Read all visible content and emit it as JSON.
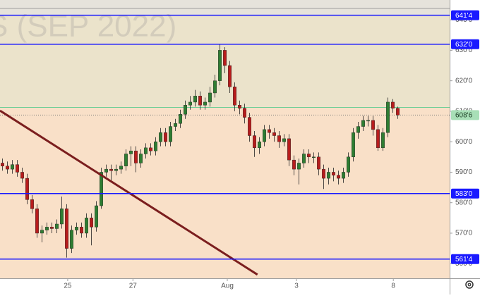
{
  "chart_data": {
    "type": "candlestick",
    "watermark": "S (SEP 2022)",
    "xlim": [
      -0.5,
      90.5
    ],
    "ylim": [
      555.2,
      646.5
    ],
    "xticks": [
      {
        "value": 13.2,
        "label": "25"
      },
      {
        "value": 26.4,
        "label": "27"
      },
      {
        "value": 45.5,
        "label": "Aug"
      },
      {
        "value": 59.5,
        "label": "3"
      },
      {
        "value": 79.1,
        "label": "8"
      }
    ],
    "yticks": [
      {
        "value": 640,
        "label": "640'0"
      },
      {
        "value": 630,
        "label": "630'0"
      },
      {
        "value": 620,
        "label": "620'0"
      },
      {
        "value": 610,
        "label": "610'0"
      },
      {
        "value": 600,
        "label": "600'0"
      },
      {
        "value": 590,
        "label": "590'0"
      },
      {
        "value": 580,
        "label": "580'0"
      },
      {
        "value": 570,
        "label": "570'0"
      },
      {
        "value": 560,
        "label": "560'0"
      }
    ],
    "up_color": "#2e7d32",
    "down_color": "#b71c1c",
    "zones": [
      {
        "from": 641.5,
        "to": 646.5,
        "color": "#e6e3db"
      },
      {
        "from": 611.25,
        "to": 641.5,
        "color": "#ebe3cb"
      },
      {
        "from": 555.2,
        "to": 611.25,
        "color": "#f9e0c8"
      }
    ],
    "levels": [
      {
        "value": 641.5,
        "label": "641'4",
        "color": "#1a1aff"
      },
      {
        "value": 632,
        "label": "632'0",
        "color": "#1a1aff"
      },
      {
        "value": 583,
        "label": "583'0",
        "color": "#1a1aff"
      },
      {
        "value": 561.5,
        "label": "561'4",
        "color": "#1a1aff"
      }
    ],
    "zone_line": {
      "value": 611.25,
      "color": "#6fcf97"
    },
    "last_price": {
      "value": 608.75,
      "label": "608'6",
      "color": "#a8dfb7"
    },
    "trendline": {
      "start": [
        -0.5,
        610.2
      ],
      "end": [
        51.6,
        556.4
      ],
      "color": "#7b1e1e"
    },
    "open": [
      593,
      592,
      591,
      592.5,
      590,
      588,
      581,
      578,
      570,
      571,
      572,
      571.5,
      573,
      578,
      565,
      571,
      572,
      570,
      575,
      572,
      579,
      590,
      591,
      590.5,
      591,
      592,
      596,
      597,
      593,
      596,
      598,
      597,
      600,
      603,
      600,
      605,
      606,
      609,
      612,
      613,
      615,
      612,
      613,
      616,
      620,
      630,
      625,
      618,
      612,
      611,
      608,
      602,
      598,
      600,
      604,
      603,
      602,
      600,
      601,
      594,
      591,
      593,
      596,
      595,
      595,
      591,
      588,
      590,
      589,
      588,
      590,
      595,
      603,
      605,
      607,
      607,
      604,
      598,
      603,
      613,
      611
    ],
    "high": [
      594.5,
      593.5,
      594,
      594,
      591.5,
      589.5,
      582.5,
      579.5,
      572.5,
      573.5,
      573.5,
      574.5,
      582,
      579.5,
      572.5,
      573.5,
      573.5,
      576.5,
      576.5,
      580.5,
      591.5,
      592.5,
      592.5,
      592.5,
      593.5,
      597.5,
      598.5,
      598.5,
      597.5,
      599.5,
      599.5,
      601.5,
      604.5,
      604.5,
      606.5,
      607.5,
      610.5,
      613.5,
      615,
      617,
      616.5,
      614.5,
      618,
      622,
      632,
      631,
      626.5,
      619.5,
      613.5,
      612.5,
      609.5,
      603.5,
      601.5,
      605.5,
      605.5,
      604.5,
      603.5,
      602.5,
      602.5,
      595.5,
      594.5,
      597.5,
      597.5,
      596.5,
      596.5,
      592.5,
      591.5,
      591.5,
      590.5,
      591.5,
      596.5,
      604.5,
      606.5,
      608.5,
      608.5,
      608.5,
      605.5,
      604.5,
      614.5,
      614,
      611.5
    ],
    "low": [
      590.5,
      589.5,
      589.5,
      588.5,
      586.5,
      579.5,
      576.5,
      568.5,
      567,
      569.5,
      570,
      570,
      571.5,
      562,
      563.5,
      569.5,
      568.5,
      568.5,
      566,
      570.5,
      578,
      588.5,
      587,
      589,
      589.5,
      590.5,
      592,
      590,
      591.5,
      594.5,
      595.5,
      595.5,
      598.5,
      598.5,
      598.5,
      603.5,
      604.5,
      607.5,
      610.5,
      611.5,
      610.5,
      610.5,
      611.5,
      614.5,
      618.5,
      622.5,
      616,
      610,
      609,
      606,
      600,
      595,
      596,
      598.5,
      601,
      600,
      598,
      598.5,
      592,
      589,
      586,
      591.5,
      593,
      593,
      589,
      584.5,
      586,
      587,
      586,
      586.5,
      588.5,
      593.5,
      601,
      603.5,
      605,
      602,
      597,
      597,
      601.5,
      609.5,
      607.5
    ],
    "close": [
      592,
      591,
      592.5,
      590,
      588,
      581,
      578,
      570,
      571,
      572,
      571.5,
      573,
      578,
      565,
      571,
      572,
      570,
      575,
      572,
      579,
      590,
      591,
      590.5,
      591,
      592,
      596,
      597,
      593,
      596,
      598,
      597,
      600,
      603,
      600,
      605,
      606,
      609,
      612,
      613,
      615,
      612,
      613,
      616,
      620,
      630,
      625,
      618,
      612,
      611,
      608,
      602,
      598,
      600,
      604,
      603,
      602,
      600,
      601,
      594,
      591,
      593,
      596,
      595,
      595,
      591,
      588,
      590,
      589,
      588,
      590,
      595,
      603,
      605,
      607,
      607,
      604,
      598,
      603,
      613,
      611,
      608.75
    ]
  }
}
